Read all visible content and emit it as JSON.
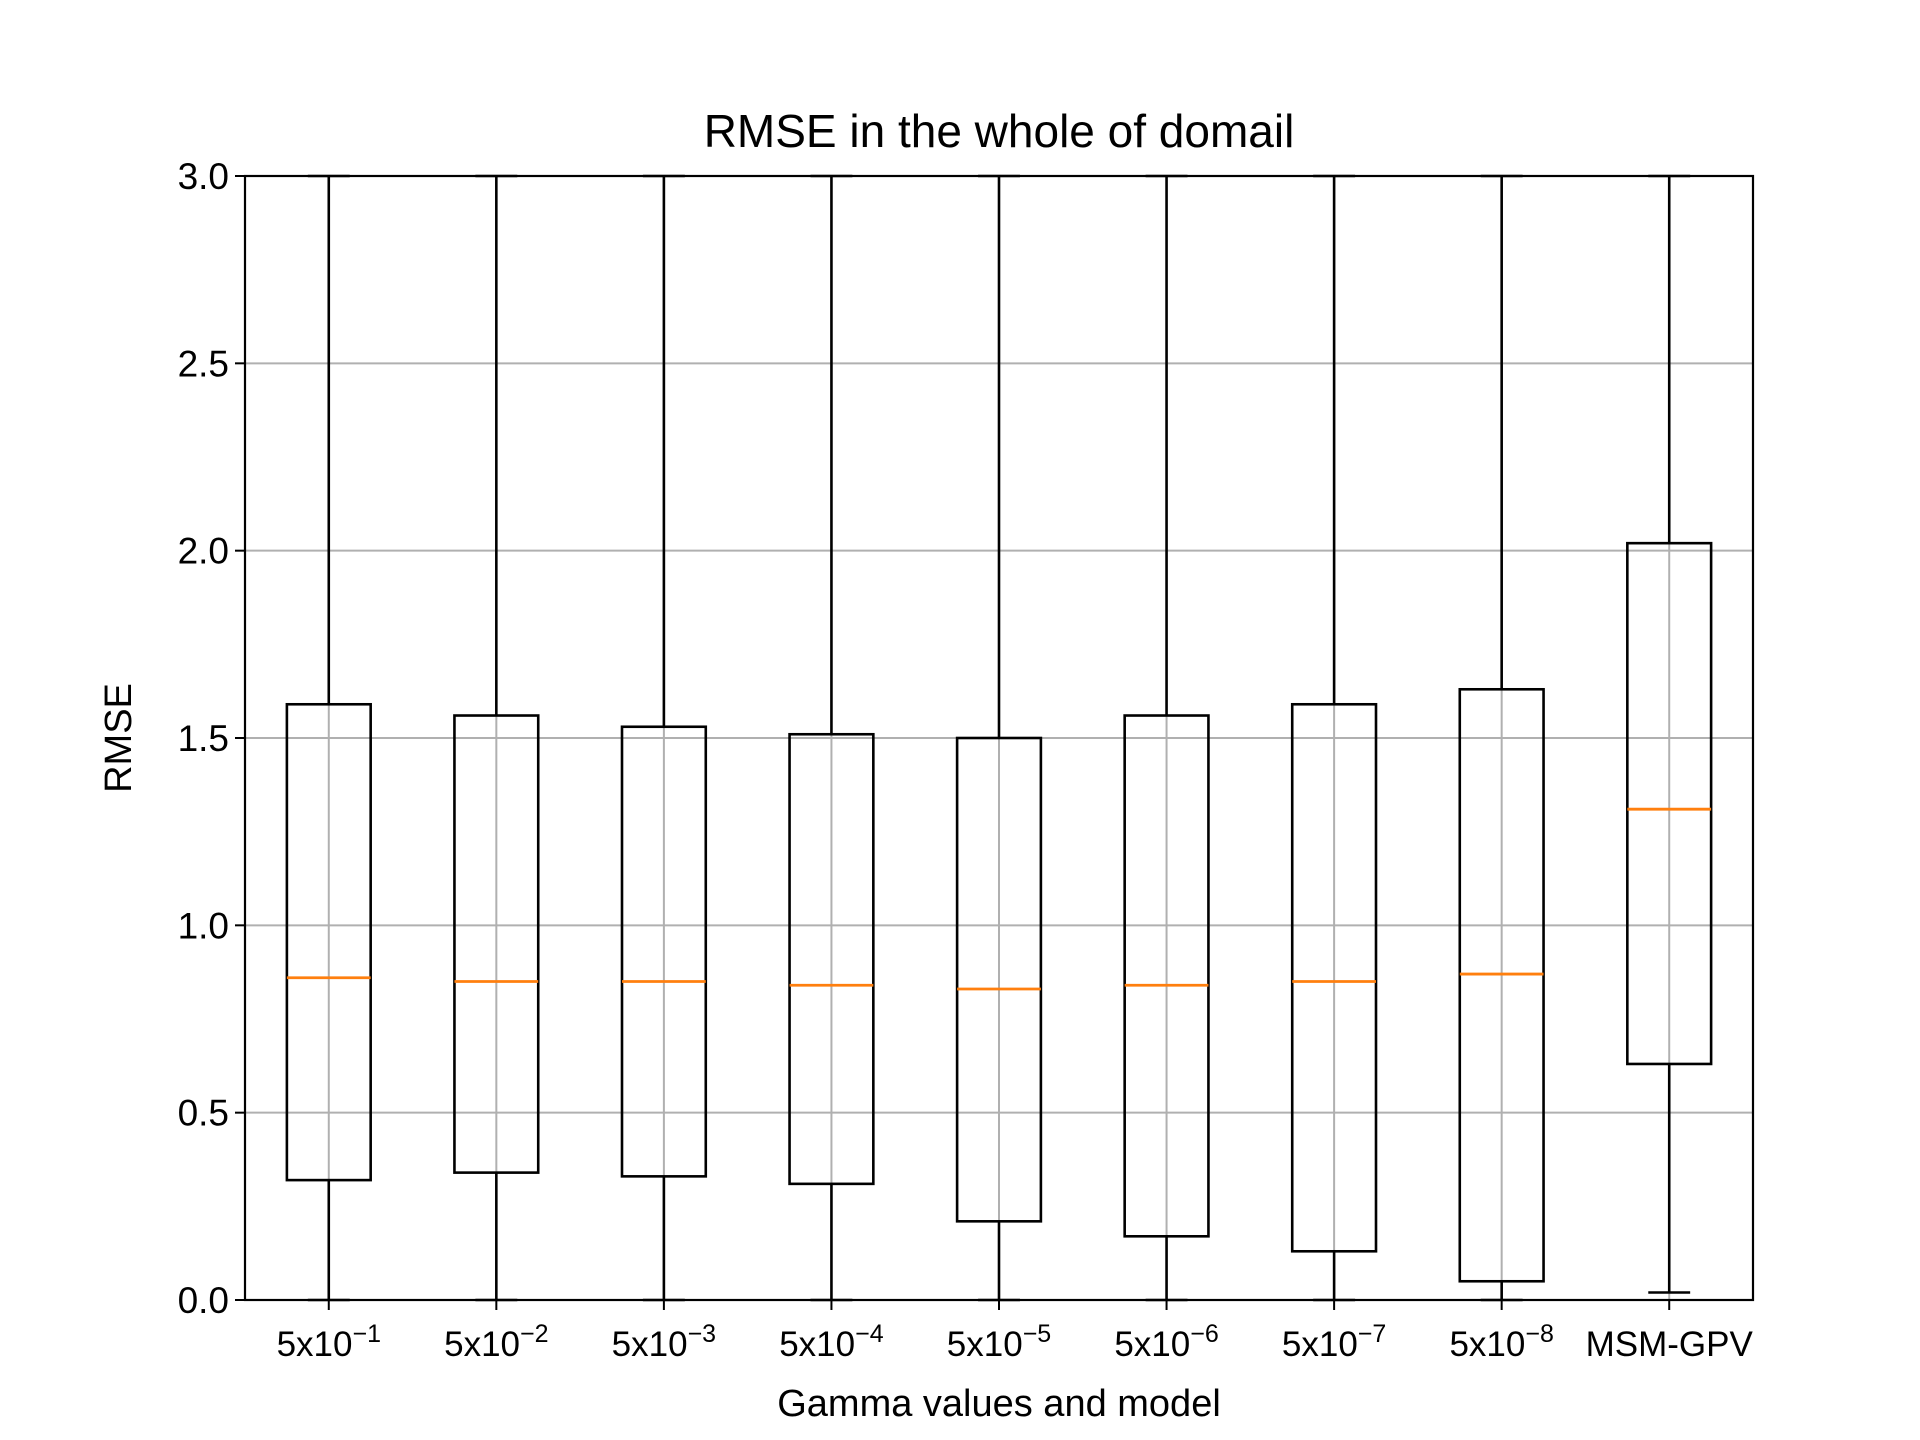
{
  "chart_data": {
    "type": "box",
    "title": "RMSE in the whole of domail",
    "xlabel": "Gamma values and model",
    "ylabel": "RMSE",
    "ylim": [
      0.0,
      3.0
    ],
    "yticks": [
      "0.0",
      "0.5",
      "1.0",
      "1.5",
      "2.0",
      "2.5",
      "3.0"
    ],
    "grid": true,
    "categories": [
      {
        "base": "5x10",
        "exp": "−1"
      },
      {
        "base": "5x10",
        "exp": "−2"
      },
      {
        "base": "5x10",
        "exp": "−3"
      },
      {
        "base": "5x10",
        "exp": "−4"
      },
      {
        "base": "5x10",
        "exp": "−5"
      },
      {
        "base": "5x10",
        "exp": "−6"
      },
      {
        "base": "5x10",
        "exp": "−7"
      },
      {
        "base": "5x10",
        "exp": "−8"
      },
      {
        "base": "MSM-GPV",
        "exp": ""
      }
    ],
    "boxes": [
      {
        "whisker_low": 0.0,
        "q1": 0.32,
        "median": 0.86,
        "q3": 1.59,
        "whisker_high": 3.0
      },
      {
        "whisker_low": 0.0,
        "q1": 0.34,
        "median": 0.85,
        "q3": 1.56,
        "whisker_high": 3.0
      },
      {
        "whisker_low": 0.0,
        "q1": 0.33,
        "median": 0.85,
        "q3": 1.53,
        "whisker_high": 3.0
      },
      {
        "whisker_low": 0.0,
        "q1": 0.31,
        "median": 0.84,
        "q3": 1.51,
        "whisker_high": 3.0
      },
      {
        "whisker_low": 0.0,
        "q1": 0.21,
        "median": 0.83,
        "q3": 1.5,
        "whisker_high": 3.0
      },
      {
        "whisker_low": 0.0,
        "q1": 0.17,
        "median": 0.84,
        "q3": 1.56,
        "whisker_high": 3.0
      },
      {
        "whisker_low": 0.0,
        "q1": 0.13,
        "median": 0.85,
        "q3": 1.59,
        "whisker_high": 3.0
      },
      {
        "whisker_low": 0.0,
        "q1": 0.05,
        "median": 0.87,
        "q3": 1.63,
        "whisker_high": 3.0
      },
      {
        "whisker_low": 0.02,
        "q1": 0.63,
        "median": 1.31,
        "q3": 2.02,
        "whisker_high": 3.0
      }
    ],
    "colors": {
      "box": "#000000",
      "median": "#ff7f0e",
      "grid": "#b0b0b0"
    }
  }
}
